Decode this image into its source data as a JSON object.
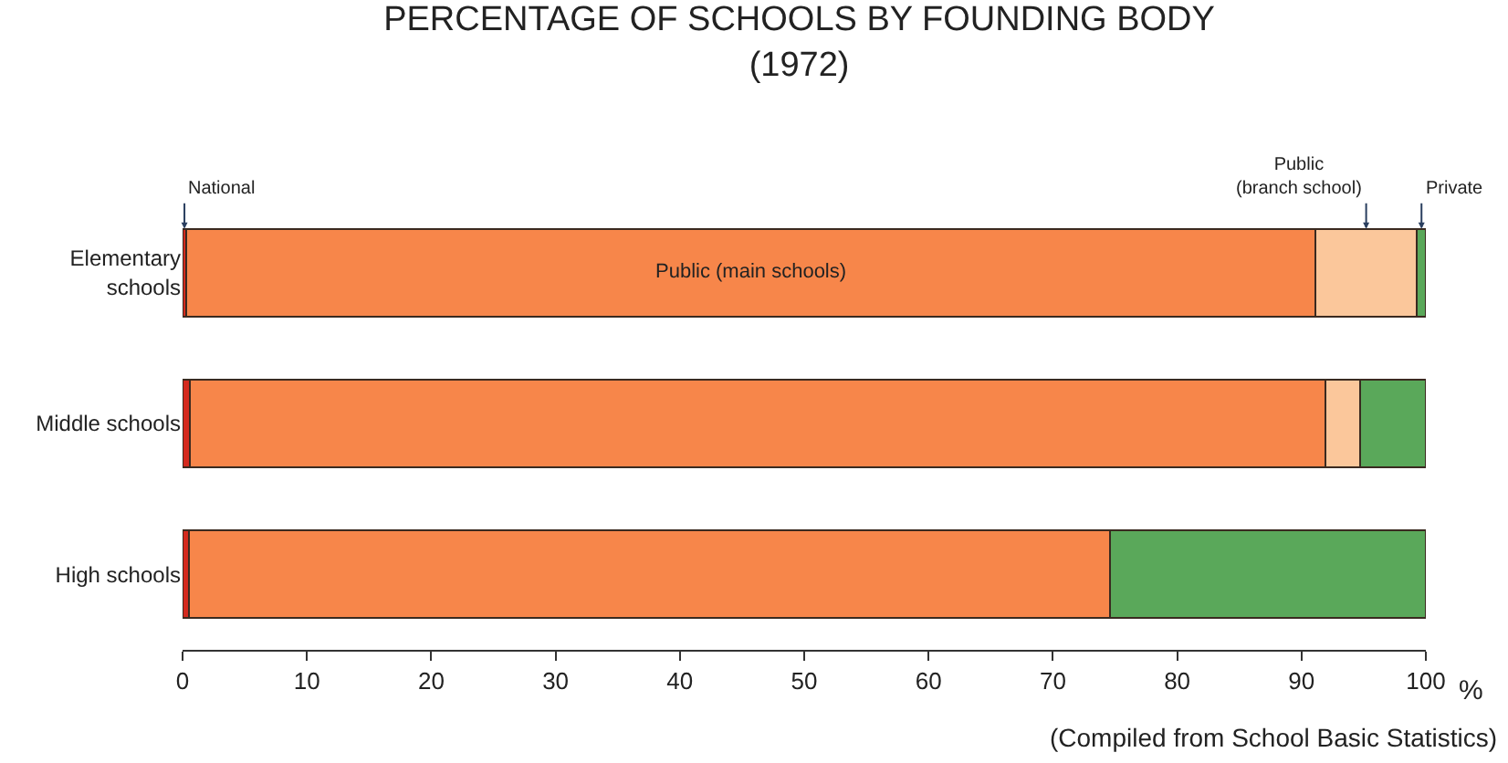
{
  "chart_data": {
    "type": "bar",
    "orientation": "horizontal",
    "stacked": true,
    "title": "PERCENTAGE OF SCHOOLS BY FOUNDING BODY",
    "subtitle": "(1972)",
    "xlabel": "%",
    "categories": [
      "Elementary\nschools",
      "Middle schools",
      "High schools"
    ],
    "series": [
      {
        "name": "National",
        "color": "#d42a1e",
        "values": [
          0.3,
          0.6,
          0.5
        ]
      },
      {
        "name": "Public (main schools)",
        "color": "#f7864a",
        "values": [
          90.8,
          91.3,
          74.1
        ]
      },
      {
        "name": "Public\n(branch school)",
        "color": "#fbc79b",
        "values": [
          8.2,
          2.8,
          0
        ]
      },
      {
        "name": "Private",
        "color": "#5aa85a",
        "values": [
          0.7,
          5.3,
          25.4
        ]
      }
    ],
    "xlim": [
      0,
      100
    ],
    "xticks": [
      0,
      10,
      20,
      30,
      40,
      50,
      60,
      70,
      80,
      90,
      100
    ],
    "legend": false,
    "annotations": [
      "(Compiled from School Basic Statistics)"
    ]
  }
}
